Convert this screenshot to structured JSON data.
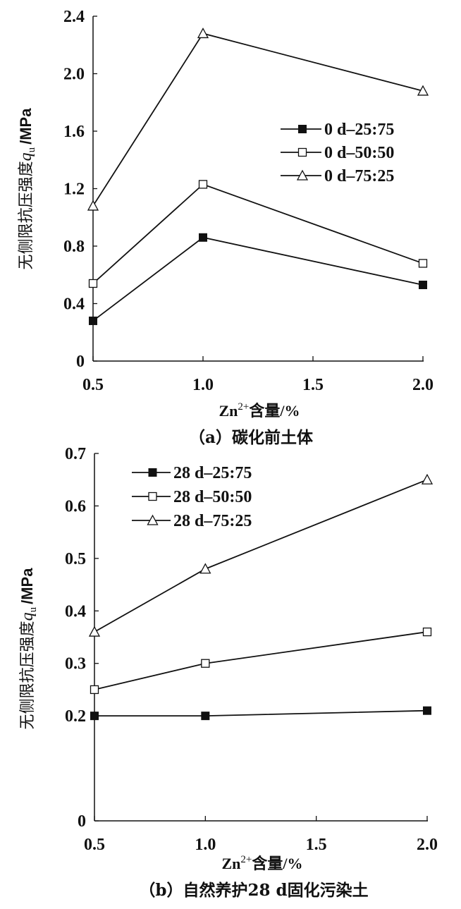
{
  "chart_data": [
    {
      "type": "line",
      "caption": "（a）碳化前土体",
      "xlabel": "Zn",
      "xlabel_sup": "2+",
      "xlabel_suffix": "含量/%",
      "ylabel_prefix": "无侧限抗压强度",
      "ylabel_symbol": "q",
      "ylabel_sub": "u",
      "ylabel_unit": "/MPa",
      "xlim": [
        0.5,
        2.0
      ],
      "ylim": [
        0,
        2.4
      ],
      "xticks": [
        0.5,
        1.0,
        1.5,
        2.0
      ],
      "xtick_labels": [
        "0.5",
        "1.0",
        "1.5",
        "2.0"
      ],
      "yticks": [
        0,
        0.4,
        0.8,
        1.2,
        1.6,
        2.0,
        2.4
      ],
      "ytick_labels": [
        "0",
        "0.4",
        "0.8",
        "1.2",
        "1.6",
        "2.0",
        "2.4"
      ],
      "legend_position": "right-middle",
      "x": [
        0.5,
        1.0,
        2.0
      ],
      "series": [
        {
          "name": "0 d–25:75",
          "marker": "filled-square",
          "values": [
            0.28,
            0.86,
            0.53
          ]
        },
        {
          "name": "0 d–50:50",
          "marker": "open-square",
          "values": [
            0.54,
            1.23,
            0.68
          ]
        },
        {
          "name": "0 d–75:25",
          "marker": "open-triangle",
          "values": [
            1.08,
            2.28,
            1.88
          ]
        }
      ]
    },
    {
      "type": "line",
      "caption": "（b）自然养护28 d固化污染土",
      "xlabel": "Zn",
      "xlabel_sup": "2+",
      "xlabel_suffix": "含量/%",
      "ylabel_prefix": "无侧限抗压强度",
      "ylabel_symbol": "q",
      "ylabel_sub": "u",
      "ylabel_unit": "/MPa",
      "xlim": [
        0.5,
        2.0
      ],
      "ylim": [
        0,
        0.7
      ],
      "xticks": [
        0.5,
        1.0,
        1.5,
        2.0
      ],
      "xtick_labels": [
        "0.5",
        "1.0",
        "1.5",
        "2.0"
      ],
      "yticks": [
        0,
        0.2,
        0.3,
        0.4,
        0.5,
        0.6,
        0.7
      ],
      "ytick_labels": [
        "0",
        "0.2",
        "0.3",
        "0.4",
        "0.5",
        "0.6",
        "0.7"
      ],
      "legend_position": "top-left",
      "x": [
        0.5,
        1.0,
        2.0
      ],
      "series": [
        {
          "name": "28 d–25:75",
          "marker": "filled-square",
          "values": [
            0.2,
            0.2,
            0.21
          ]
        },
        {
          "name": "28 d–50:50",
          "marker": "open-square",
          "values": [
            0.25,
            0.3,
            0.36
          ]
        },
        {
          "name": "28 d–75:25",
          "marker": "open-triangle",
          "values": [
            0.36,
            0.48,
            0.65
          ]
        }
      ]
    }
  ]
}
